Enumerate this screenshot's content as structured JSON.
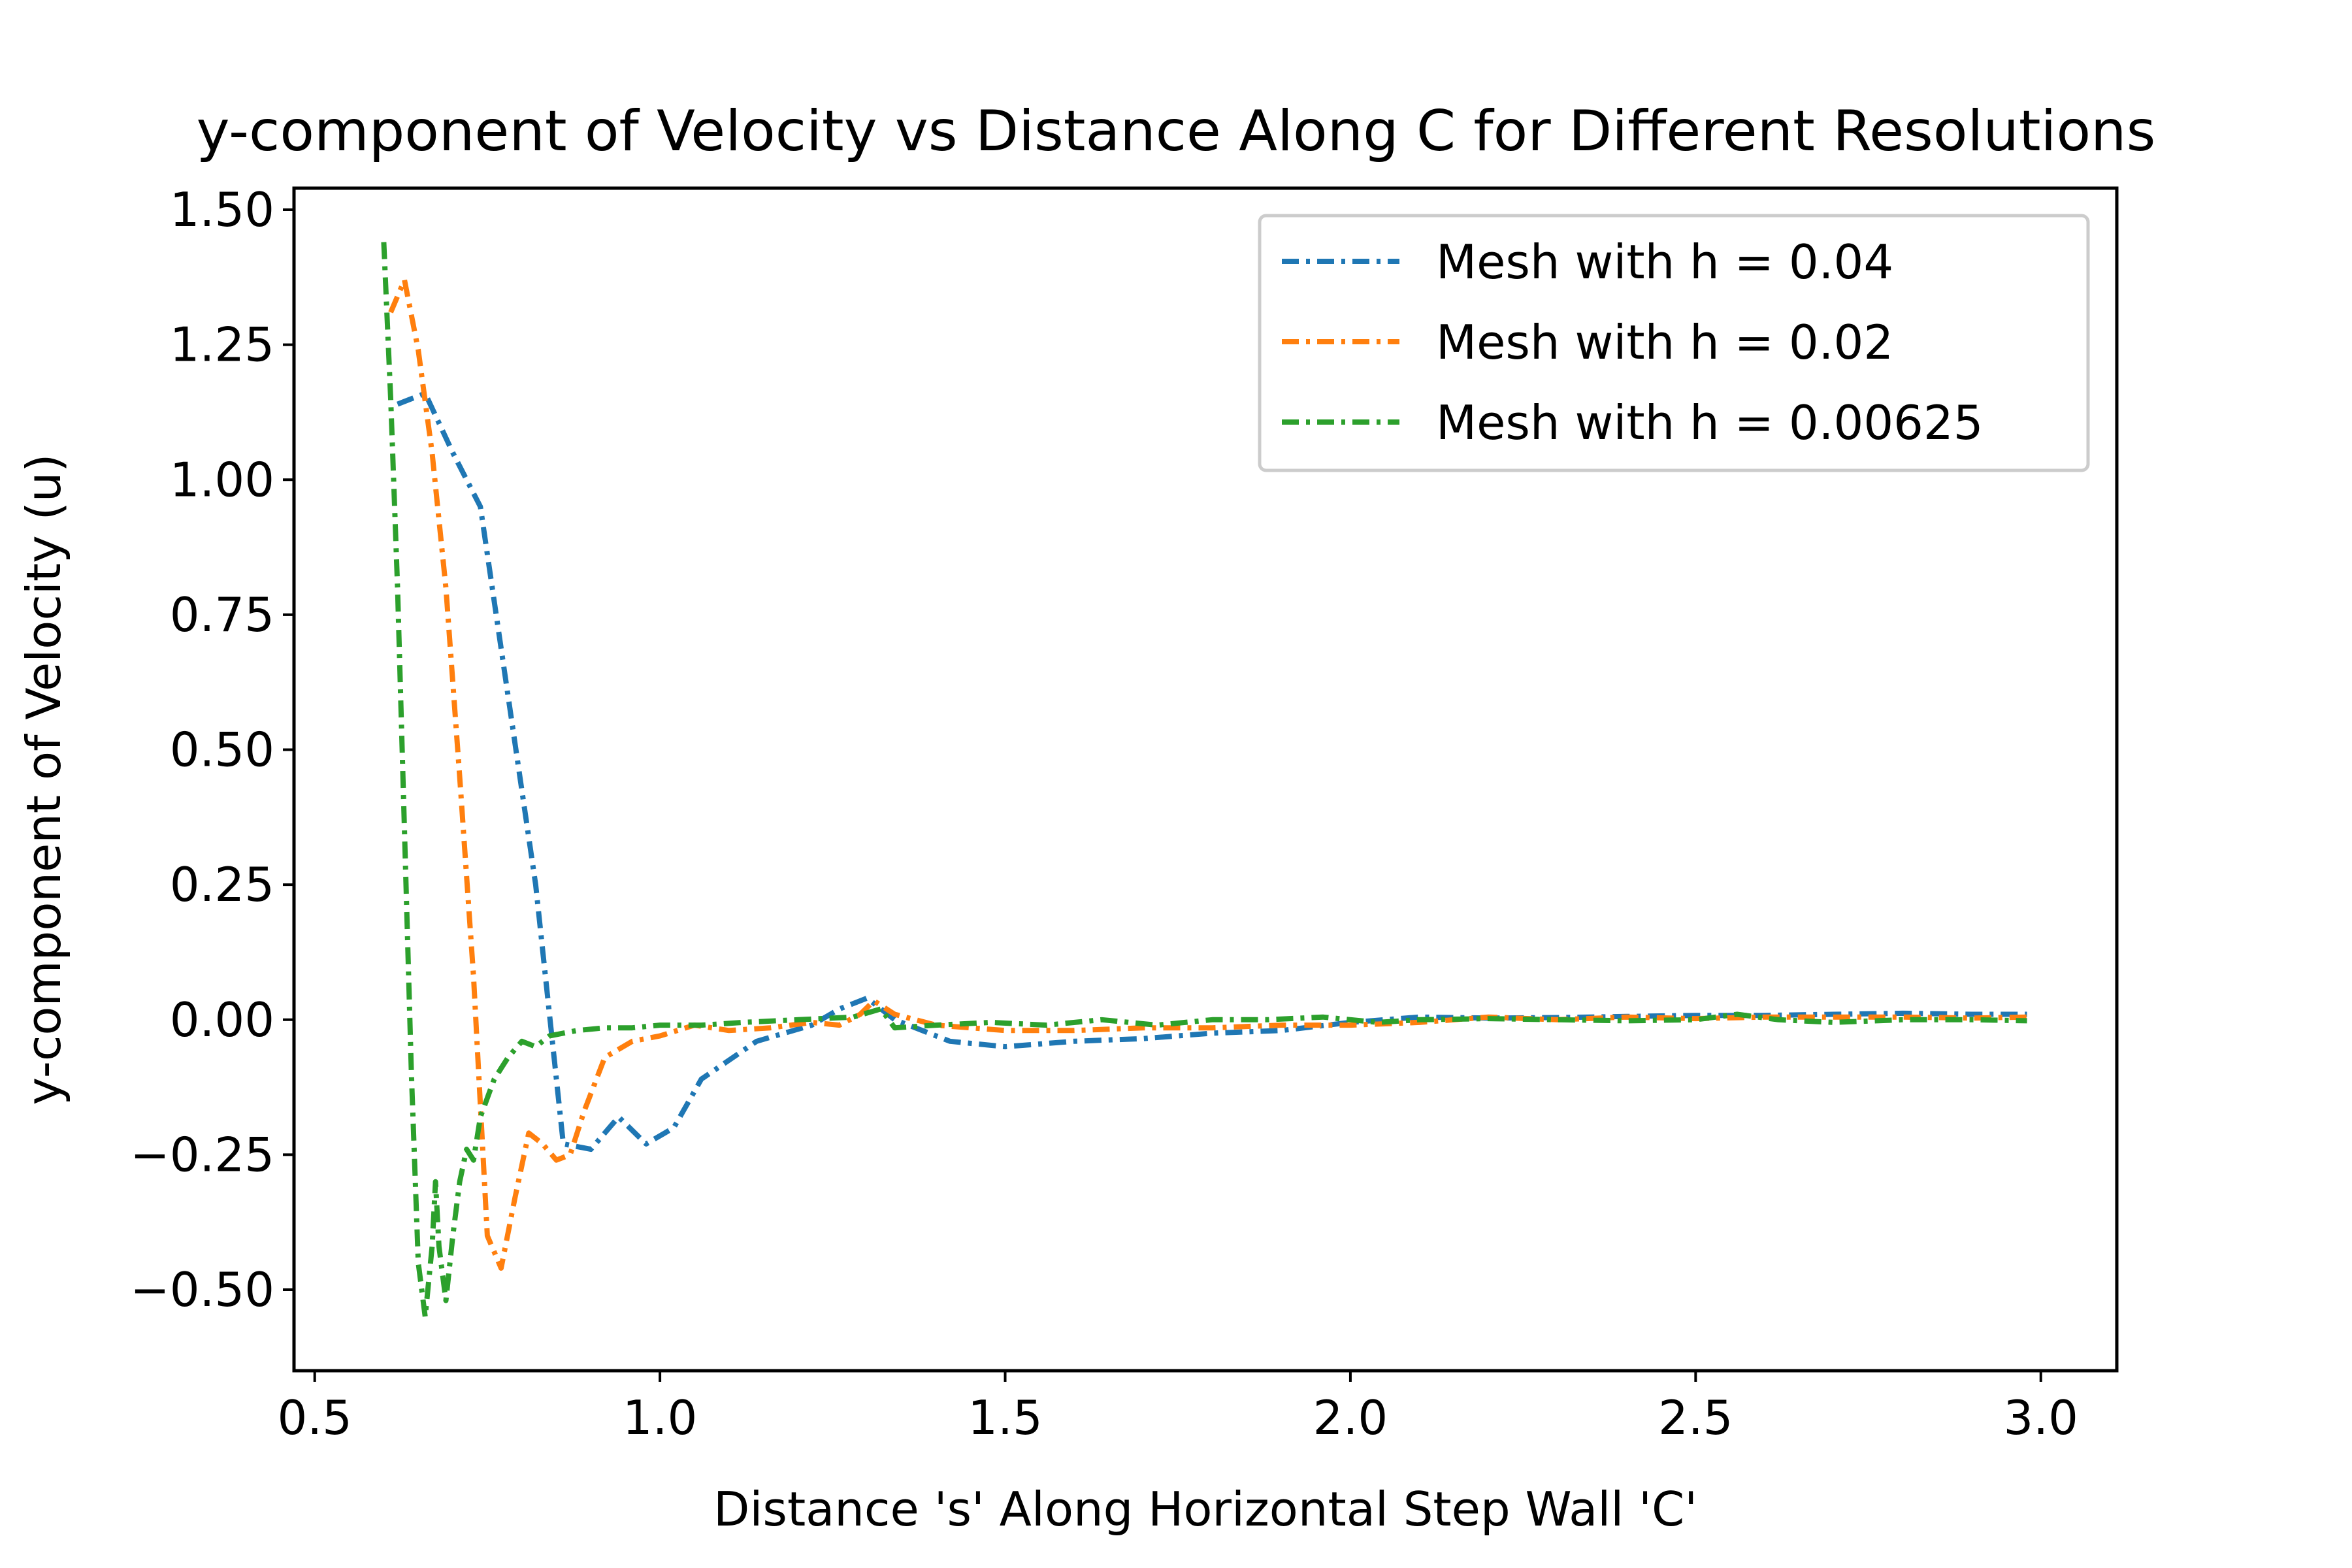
{
  "chart_data": {
    "type": "line",
    "title": "y-component of Velocity vs Distance Along C for Different Resolutions",
    "xlabel": "Distance 's' Along Horizontal Step Wall 'C'",
    "ylabel": "y-component of Velocity (u)",
    "xlim": [
      0.47,
      3.11
    ],
    "ylim": [
      -0.65,
      1.54
    ],
    "xticks": [
      0.5,
      1.0,
      1.5,
      2.0,
      2.5,
      3.0
    ],
    "xtick_labels": [
      "0.5",
      "1.0",
      "1.5",
      "2.0",
      "2.5",
      "3.0"
    ],
    "yticks": [
      -0.5,
      -0.25,
      0.0,
      0.25,
      0.5,
      0.75,
      1.0,
      1.25,
      1.5
    ],
    "ytick_labels": [
      "−0.50",
      "−0.25",
      "0.00",
      "0.25",
      "0.50",
      "0.75",
      "1.00",
      "1.25",
      "1.50"
    ],
    "grid": false,
    "legend_position": "top-right",
    "line_style": "dash-dot",
    "series": [
      {
        "name": "Mesh with h = 0.04",
        "color": "#1f77b4",
        "points": [
          [
            0.62,
            1.14
          ],
          [
            0.66,
            1.16
          ],
          [
            0.7,
            1.05
          ],
          [
            0.74,
            0.95
          ],
          [
            0.78,
            0.6
          ],
          [
            0.82,
            0.25
          ],
          [
            0.86,
            -0.23
          ],
          [
            0.9,
            -0.24
          ],
          [
            0.94,
            -0.18
          ],
          [
            0.98,
            -0.23
          ],
          [
            1.02,
            -0.2
          ],
          [
            1.06,
            -0.11
          ],
          [
            1.14,
            -0.04
          ],
          [
            1.22,
            -0.01
          ],
          [
            1.26,
            0.02
          ],
          [
            1.3,
            0.04
          ],
          [
            1.34,
            0.0
          ],
          [
            1.42,
            -0.04
          ],
          [
            1.5,
            -0.05
          ],
          [
            1.6,
            -0.04
          ],
          [
            1.7,
            -0.035
          ],
          [
            1.8,
            -0.025
          ],
          [
            1.9,
            -0.02
          ],
          [
            2.0,
            -0.005
          ],
          [
            2.1,
            0.005
          ],
          [
            2.2,
            0.003
          ],
          [
            2.3,
            0.004
          ],
          [
            2.4,
            0.006
          ],
          [
            2.5,
            0.008
          ],
          [
            2.6,
            0.008
          ],
          [
            2.7,
            0.01
          ],
          [
            2.8,
            0.012
          ],
          [
            2.9,
            0.01
          ],
          [
            2.98,
            0.01
          ]
        ]
      },
      {
        "name": "Mesh with h = 0.02",
        "color": "#ff7f0e",
        "points": [
          [
            0.61,
            1.31
          ],
          [
            0.63,
            1.37
          ],
          [
            0.65,
            1.24
          ],
          [
            0.67,
            1.05
          ],
          [
            0.69,
            0.8
          ],
          [
            0.71,
            0.45
          ],
          [
            0.73,
            0.08
          ],
          [
            0.75,
            -0.4
          ],
          [
            0.77,
            -0.46
          ],
          [
            0.79,
            -0.33
          ],
          [
            0.81,
            -0.21
          ],
          [
            0.83,
            -0.23
          ],
          [
            0.85,
            -0.26
          ],
          [
            0.87,
            -0.25
          ],
          [
            0.89,
            -0.17
          ],
          [
            0.92,
            -0.07
          ],
          [
            0.96,
            -0.04
          ],
          [
            1.0,
            -0.03
          ],
          [
            1.05,
            -0.01
          ],
          [
            1.1,
            -0.02
          ],
          [
            1.16,
            -0.015
          ],
          [
            1.22,
            -0.005
          ],
          [
            1.26,
            -0.01
          ],
          [
            1.29,
            0.01
          ],
          [
            1.31,
            0.035
          ],
          [
            1.34,
            0.01
          ],
          [
            1.4,
            -0.01
          ],
          [
            1.5,
            -0.02
          ],
          [
            1.6,
            -0.02
          ],
          [
            1.7,
            -0.015
          ],
          [
            1.8,
            -0.015
          ],
          [
            1.9,
            -0.01
          ],
          [
            2.0,
            -0.01
          ],
          [
            2.1,
            -0.005
          ],
          [
            2.2,
            0.005
          ],
          [
            2.3,
            0.0
          ],
          [
            2.4,
            0.005
          ],
          [
            2.5,
            0.002
          ],
          [
            2.6,
            0.005
          ],
          [
            2.7,
            0.005
          ],
          [
            2.8,
            0.005
          ],
          [
            2.9,
            0.003
          ],
          [
            2.98,
            0.005
          ]
        ]
      },
      {
        "name": "Mesh with h = 0.00625",
        "color": "#2ca02c",
        "points": [
          [
            0.6,
            1.44
          ],
          [
            0.61,
            1.15
          ],
          [
            0.62,
            0.8
          ],
          [
            0.63,
            0.35
          ],
          [
            0.64,
            -0.1
          ],
          [
            0.65,
            -0.45
          ],
          [
            0.66,
            -0.55
          ],
          [
            0.67,
            -0.42
          ],
          [
            0.675,
            -0.3
          ],
          [
            0.68,
            -0.42
          ],
          [
            0.69,
            -0.52
          ],
          [
            0.7,
            -0.4
          ],
          [
            0.71,
            -0.3
          ],
          [
            0.72,
            -0.24
          ],
          [
            0.73,
            -0.26
          ],
          [
            0.74,
            -0.18
          ],
          [
            0.76,
            -0.11
          ],
          [
            0.78,
            -0.07
          ],
          [
            0.8,
            -0.04
          ],
          [
            0.82,
            -0.05
          ],
          [
            0.84,
            -0.03
          ],
          [
            0.88,
            -0.02
          ],
          [
            0.92,
            -0.015
          ],
          [
            0.96,
            -0.015
          ],
          [
            1.0,
            -0.01
          ],
          [
            1.06,
            -0.01
          ],
          [
            1.12,
            -0.005
          ],
          [
            1.2,
            0.0
          ],
          [
            1.28,
            0.005
          ],
          [
            1.32,
            0.02
          ],
          [
            1.34,
            -0.015
          ],
          [
            1.4,
            -0.01
          ],
          [
            1.48,
            -0.005
          ],
          [
            1.56,
            -0.01
          ],
          [
            1.64,
            0.0
          ],
          [
            1.72,
            -0.01
          ],
          [
            1.8,
            0.0
          ],
          [
            1.88,
            0.0
          ],
          [
            1.96,
            0.005
          ],
          [
            2.04,
            -0.005
          ],
          [
            2.1,
            0.0
          ],
          [
            2.2,
            0.002
          ],
          [
            2.3,
            0.0
          ],
          [
            2.4,
            -0.002
          ],
          [
            2.5,
            0.0
          ],
          [
            2.56,
            0.01
          ],
          [
            2.62,
            0.0
          ],
          [
            2.7,
            -0.005
          ],
          [
            2.8,
            0.0
          ],
          [
            2.9,
            0.0
          ],
          [
            2.98,
            -0.002
          ]
        ]
      }
    ]
  }
}
